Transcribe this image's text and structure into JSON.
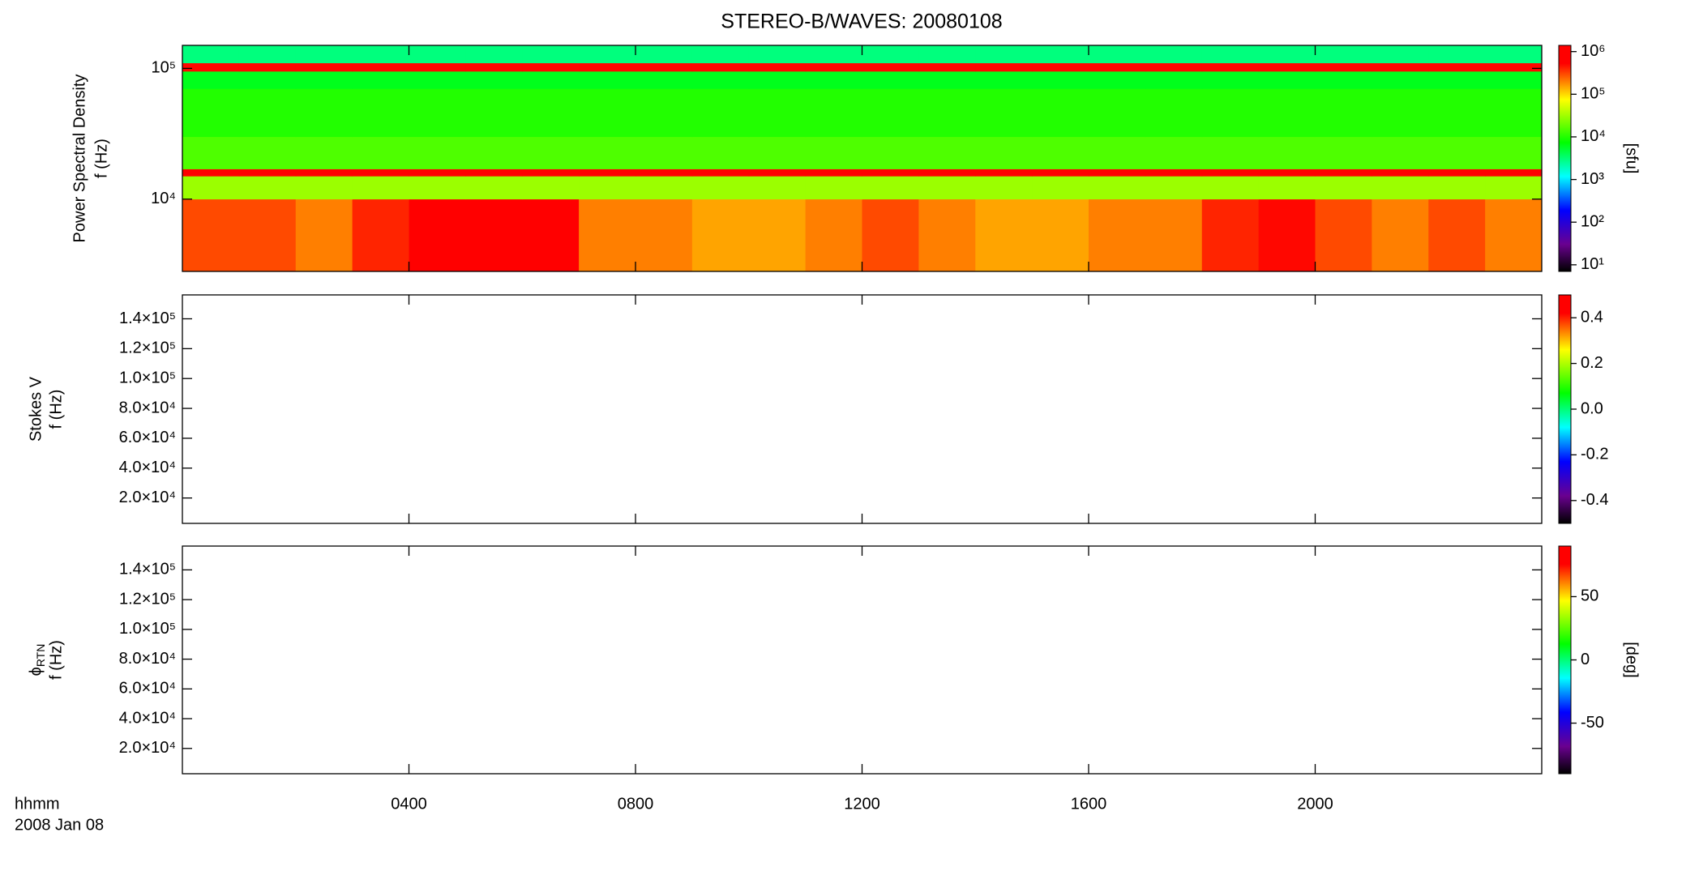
{
  "chart_data": [
    {
      "type": "heatmap",
      "title": "STEREO-B/WAVES: 20080108",
      "ylabel_lines": [
        "Power Spectral Density",
        "f (Hz)"
      ],
      "ylog": true,
      "ylim": [
        2800,
        150000
      ],
      "yticks": [
        {
          "value": 10000,
          "label": "10⁴"
        },
        {
          "value": 100000,
          "label": "10⁵"
        }
      ],
      "xlim": [
        0,
        24
      ],
      "xticks": [
        4,
        8,
        12,
        16,
        20
      ],
      "x": [
        0,
        1,
        2,
        3,
        4,
        5,
        6,
        7,
        8,
        9,
        10,
        11,
        12,
        13,
        14,
        15,
        16,
        17,
        18,
        19,
        20,
        21,
        22,
        23,
        24
      ],
      "y": [
        2800,
        10000,
        15000,
        17000,
        30000,
        70000,
        95000,
        110000,
        150000
      ],
      "z": [
        [
          300000,
          300000,
          200000,
          400000,
          1000000,
          800000,
          1000000,
          200000,
          200000,
          150000,
          150000,
          200000,
          300000,
          200000,
          150000,
          150000,
          200000,
          200000,
          400000,
          500000,
          300000,
          200000,
          300000,
          200000
        ],
        [
          30000,
          30000,
          30000,
          30000,
          30000,
          30000,
          30000,
          30000,
          30000,
          30000,
          30000,
          30000,
          30000,
          30000,
          30000,
          30000,
          30000,
          30000,
          30000,
          30000,
          30000,
          30000,
          30000,
          30000
        ],
        [
          600000,
          600000,
          600000,
          600000,
          600000,
          600000,
          600000,
          600000,
          600000,
          600000,
          600000,
          600000,
          600000,
          600000,
          600000,
          600000,
          600000,
          600000,
          600000,
          600000,
          600000,
          600000,
          600000,
          600000
        ],
        [
          15000,
          15000,
          15000,
          15000,
          15000,
          15000,
          15000,
          15000,
          15000,
          15000,
          15000,
          15000,
          15000,
          15000,
          15000,
          15000,
          15000,
          15000,
          15000,
          15000,
          15000,
          15000,
          15000,
          15000
        ],
        [
          10000,
          10000,
          10000,
          10000,
          10000,
          10000,
          10000,
          10000,
          10000,
          10000,
          10000,
          10000,
          10000,
          10000,
          10000,
          10000,
          10000,
          10000,
          10000,
          10000,
          10000,
          10000,
          10000,
          10000
        ],
        [
          6000,
          6000,
          6000,
          6000,
          6000,
          6000,
          6000,
          6000,
          6000,
          6000,
          6000,
          6000,
          6000,
          6000,
          6000,
          6000,
          6000,
          6000,
          6000,
          6000,
          6000,
          6000,
          6000,
          6000
        ],
        [
          500000,
          500000,
          500000,
          500000,
          500000,
          500000,
          500000,
          500000,
          500000,
          500000,
          500000,
          500000,
          500000,
          500000,
          500000,
          500000,
          500000,
          500000,
          500000,
          500000,
          500000,
          500000,
          500000,
          500000
        ],
        [
          3000,
          3000,
          3000,
          3000,
          3000,
          3000,
          3000,
          3000,
          3000,
          3000,
          3000,
          3000,
          3000,
          3000,
          3000,
          3000,
          3000,
          3000,
          3000,
          3000,
          3000,
          3000,
          3000,
          3000
        ]
      ],
      "clog": true,
      "clim": [
        7,
        1400000
      ],
      "cticks": [
        {
          "value": 10,
          "label": "10¹"
        },
        {
          "value": 100,
          "label": "10²"
        },
        {
          "value": 1000,
          "label": "10³"
        },
        {
          "value": 10000,
          "label": "10⁴"
        },
        {
          "value": 100000,
          "label": "10⁵"
        },
        {
          "value": 1000000,
          "label": "10⁶"
        }
      ],
      "clabel": "[sfu]"
    },
    {
      "type": "heatmap",
      "ylabel_lines": [
        "Stokes V",
        "f (Hz)"
      ],
      "ylim": [
        3000,
        156000
      ],
      "yticks": [
        {
          "value": 20000,
          "label": "2.0×10⁴"
        },
        {
          "value": 40000,
          "label": "4.0×10⁴"
        },
        {
          "value": 60000,
          "label": "6.0×10⁴"
        },
        {
          "value": 80000,
          "label": "8.0×10⁴"
        },
        {
          "value": 100000,
          "label": "1.0×10⁵"
        },
        {
          "value": 120000,
          "label": "1.2×10⁵"
        },
        {
          "value": 140000,
          "label": "1.4×10⁵"
        }
      ],
      "xlim": [
        0,
        24
      ],
      "xticks": [
        4,
        8,
        12,
        16,
        20
      ],
      "clim": [
        -0.5,
        0.5
      ],
      "cticks": [
        -0.4,
        -0.2,
        {
          "value": 0,
          "label": "0.0"
        },
        0.2,
        0.4
      ]
    },
    {
      "type": "heatmap",
      "ylabel_lines": [
        "ϕ",
        "f (Hz)"
      ],
      "ylabel_sub": "RTN",
      "ylim": [
        3000,
        156000
      ],
      "yticks": [
        {
          "value": 20000,
          "label": "2.0×10⁴"
        },
        {
          "value": 40000,
          "label": "4.0×10⁴"
        },
        {
          "value": 60000,
          "label": "6.0×10⁴"
        },
        {
          "value": 80000,
          "label": "8.0×10⁴"
        },
        {
          "value": 100000,
          "label": "1.0×10⁵"
        },
        {
          "value": 120000,
          "label": "1.2×10⁵"
        },
        {
          "value": 140000,
          "label": "1.4×10⁵"
        }
      ],
      "xlim": [
        0,
        24
      ],
      "xticks": [
        {
          "value": 4,
          "label": "0400"
        },
        {
          "value": 8,
          "label": "0800"
        },
        {
          "value": 12,
          "label": "1200"
        },
        {
          "value": 16,
          "label": "1600"
        },
        {
          "value": 20,
          "label": "2000"
        }
      ],
      "xlabel": "hhmm",
      "date_label": "2008 Jan 08",
      "clim": [
        -90,
        90
      ],
      "cticks": [
        -50,
        0,
        50
      ],
      "clabel": "[deg]"
    }
  ]
}
